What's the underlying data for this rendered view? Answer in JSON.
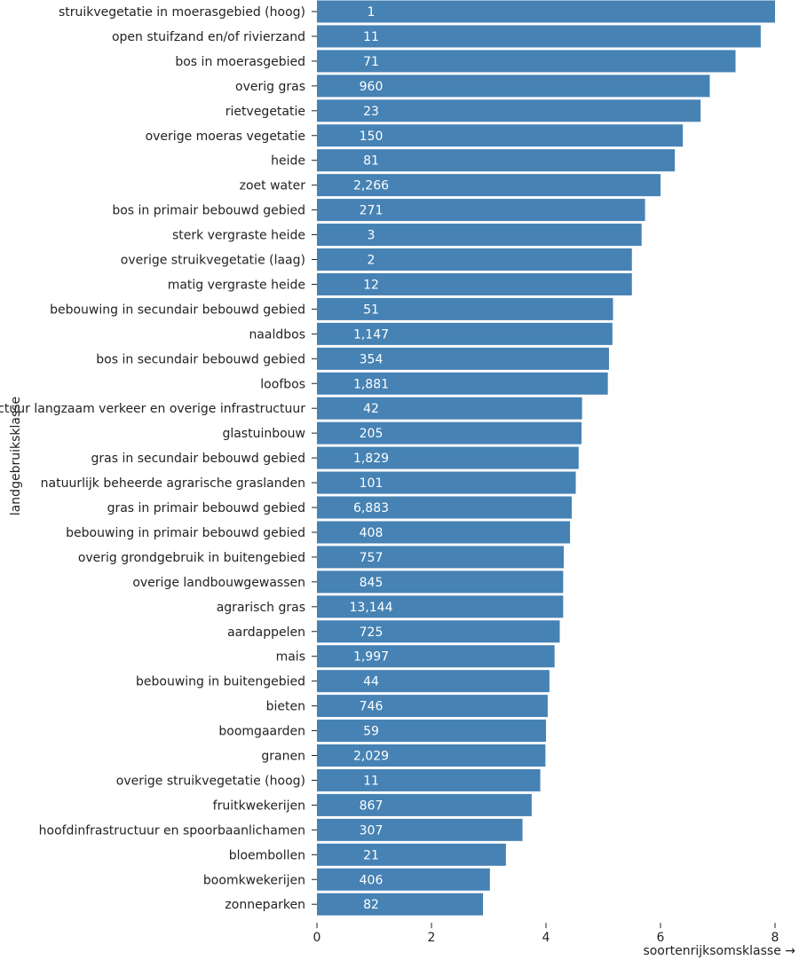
{
  "chart_data": {
    "type": "bar",
    "orientation": "horizontal",
    "xlabel": "soortenrijksomsklasse →",
    "ylabel": "landgebruiksklasse",
    "xlim": [
      0,
      8
    ],
    "xticks": [
      "0",
      "2",
      "4",
      "6",
      "8"
    ],
    "grid": false,
    "bar_color": "#4682b4",
    "categories": [
      "struikvegetatie in moerasgebied (hoog)",
      "open stuifzand en/of rivierzand",
      "bos in moerasgebied",
      "overig gras",
      "rietvegetatie",
      "overige moeras vegetatie",
      "heide",
      "zoet water",
      "bos in primair bebouwd gebied",
      "sterk vergraste heide",
      "overige struikvegetatie (laag)",
      "matig vergraste heide",
      "bebouwing in secundair bebouwd gebied",
      "naaldbos",
      "bos in secundair bebouwd gebied",
      "loofbos",
      "infrastructuur langzaam verkeer en overige infrastructuur",
      "glastuinbouw",
      "gras in secundair bebouwd gebied",
      "natuurlijk beheerde agrarische graslanden",
      "gras in primair bebouwd gebied",
      "bebouwing in primair bebouwd gebied",
      "overig grondgebruik in buitengebied",
      "overige landbouwgewassen",
      "agrarisch gras",
      "aardappelen",
      "mais",
      "bebouwing in buitengebied",
      "bieten",
      "boomgaarden",
      "granen",
      "overige struikvegetatie (hoog)",
      "fruitkwekerijen",
      "hoofdinfrastructuur en spoorbaanlichamen",
      "bloembollen",
      "boomkwekerijen",
      "zonneparken"
    ],
    "values": [
      8.0,
      7.75,
      7.31,
      6.86,
      6.7,
      6.39,
      6.25,
      6.0,
      5.73,
      5.67,
      5.5,
      5.5,
      5.17,
      5.16,
      5.1,
      5.08,
      4.63,
      4.62,
      4.57,
      4.52,
      4.45,
      4.42,
      4.31,
      4.3,
      4.3,
      4.24,
      4.15,
      4.06,
      4.03,
      4.0,
      3.99,
      3.9,
      3.75,
      3.59,
      3.3,
      3.02,
      2.9
    ],
    "bar_labels": [
      "1",
      "11",
      "71",
      "960",
      "23",
      "150",
      "81",
      "2,266",
      "271",
      "3",
      "2",
      "12",
      "51",
      "1,147",
      "354",
      "1,881",
      "42",
      "205",
      "1,829",
      "101",
      "6,883",
      "408",
      "757",
      "845",
      "13,144",
      "725",
      "1,997",
      "44",
      "746",
      "59",
      "2,029",
      "11",
      "867",
      "307",
      "21",
      "406",
      "82"
    ]
  }
}
